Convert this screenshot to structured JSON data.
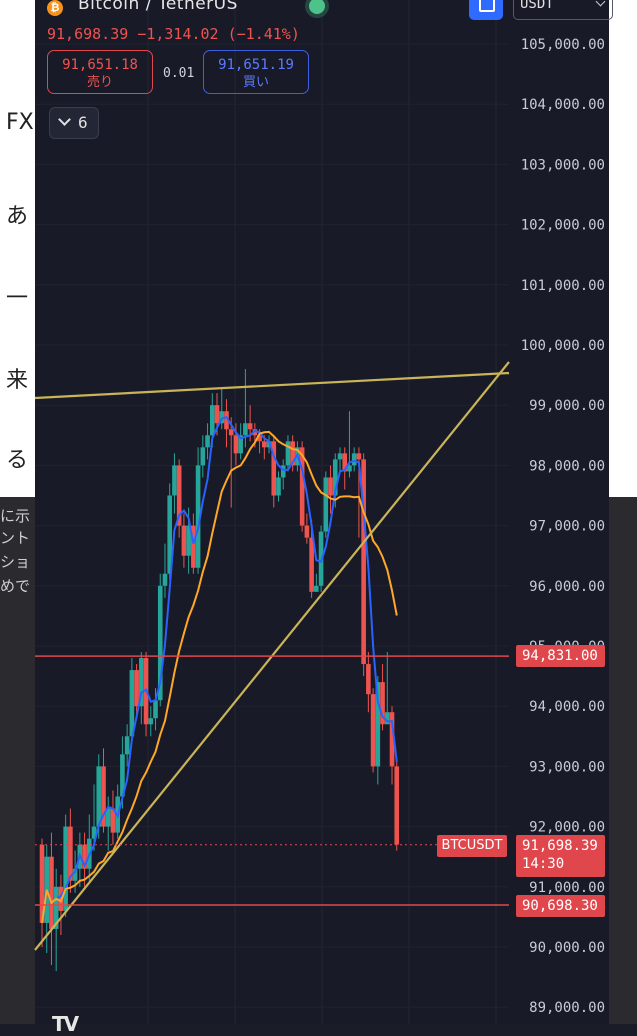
{
  "header": {
    "title": "Bitcoin / TetherUS",
    "quote": "91,698.39  −1,314.02 (−1.41%)",
    "sell_price": "91,651.18",
    "sell_label": "売り",
    "spread": "0.01",
    "buy_price": "91,651.19",
    "buy_label": "買い",
    "indicators_count": "6",
    "currency": "USDT"
  },
  "colors": {
    "up": "#26a69a",
    "down": "#ef5350",
    "ma_fast": "#2962ff",
    "ma_slow": "#ffa726",
    "trendline": "#c9b458",
    "hline": "#e0474d"
  },
  "price_tags": {
    "upper_line": "94,831.00",
    "lower_line": "90,698.30",
    "last_price": "91,698.39",
    "countdown": "14:30",
    "symbol": "BTCUSDT"
  },
  "underlay": {
    "glyphs": [
      "FXト",
      "あ",
      "一",
      "来",
      "る",
      "に示",
      "ント",
      "ショ",
      "めで"
    ]
  },
  "chart_data": {
    "type": "candlestick",
    "ylim": [
      89000,
      105500
    ],
    "y_ticks": [
      "105,000.00",
      "104,000.00",
      "103,000.00",
      "102,000.00",
      "101,000.00",
      "100,000.00",
      "99,000.00",
      "98,000.00",
      "97,000.00",
      "96,000.00",
      "95,000.00",
      "94,000.00",
      "93,000.00",
      "92,000.00",
      "91,000.00",
      "90,000.00",
      "89,000.00"
    ],
    "horizontal_lines": [
      94831,
      90698.3
    ],
    "last_price": 91698.39,
    "candles": [
      [
        91700,
        90400,
        91800,
        90000
      ],
      [
        90400,
        91500,
        91700,
        89900
      ],
      [
        91500,
        90300,
        91900,
        89700
      ],
      [
        90300,
        91000,
        91300,
        89600
      ],
      [
        91000,
        90600,
        91200,
        90200
      ],
      [
        90600,
        92000,
        92200,
        90500
      ],
      [
        92000,
        91100,
        92300,
        90900
      ],
      [
        91100,
        91300,
        91600,
        90900
      ],
      [
        91300,
        91700,
        91900,
        91000
      ],
      [
        91700,
        91300,
        91900,
        91000
      ],
      [
        91300,
        91800,
        92200,
        91100
      ],
      [
        91800,
        92000,
        92700,
        91600
      ],
      [
        92000,
        93000,
        93200,
        91800
      ],
      [
        93000,
        92000,
        93300,
        91900
      ],
      [
        92000,
        92300,
        92500,
        91600
      ],
      [
        92300,
        91900,
        92600,
        91700
      ],
      [
        91900,
        92500,
        92700,
        91800
      ],
      [
        92500,
        93200,
        93500,
        92300
      ],
      [
        93200,
        93500,
        93700,
        93000
      ],
      [
        93500,
        94600,
        94800,
        93400
      ],
      [
        94600,
        94000,
        94700,
        93800
      ],
      [
        94000,
        94800,
        94900,
        93700
      ],
      [
        94800,
        93700,
        94900,
        93500
      ],
      [
        93700,
        93800,
        94000,
        93500
      ],
      [
        93800,
        94100,
        94300,
        93600
      ],
      [
        94100,
        96000,
        96200,
        94000
      ],
      [
        96000,
        96200,
        96700,
        95800
      ],
      [
        96200,
        97500,
        97700,
        96100
      ],
      [
        97500,
        98000,
        98200,
        97200
      ],
      [
        98000,
        97000,
        98100,
        96800
      ],
      [
        97000,
        96500,
        97200,
        96300
      ],
      [
        96500,
        97000,
        97300,
        96200
      ],
      [
        97000,
        96300,
        97200,
        96200
      ],
      [
        96300,
        98000,
        98300,
        96200
      ],
      [
        98000,
        98300,
        98500,
        97800
      ],
      [
        98300,
        98500,
        98700,
        98100
      ],
      [
        98500,
        99000,
        99200,
        98300
      ],
      [
        99000,
        98700,
        99200,
        98500
      ],
      [
        98700,
        98900,
        99300,
        98600
      ],
      [
        98900,
        98600,
        99100,
        98300
      ],
      [
        98600,
        98500,
        98800,
        97300
      ],
      [
        98500,
        98200,
        98700,
        98000
      ],
      [
        98200,
        98500,
        98700,
        98100
      ],
      [
        98500,
        98700,
        99600,
        98300
      ],
      [
        98700,
        98600,
        99000,
        98400
      ],
      [
        98600,
        98500,
        98700,
        98300
      ],
      [
        98500,
        98400,
        98600,
        98200
      ],
      [
        98400,
        98300,
        98500,
        98100
      ],
      [
        98300,
        98400,
        98500,
        98200
      ],
      [
        98400,
        97500,
        98500,
        97300
      ],
      [
        97500,
        97800,
        97900,
        97400
      ],
      [
        97800,
        98000,
        98100,
        97600
      ],
      [
        98000,
        98400,
        98500,
        97900
      ],
      [
        98400,
        98000,
        98500,
        97900
      ],
      [
        98000,
        98300,
        98400,
        97900
      ],
      [
        98300,
        97000,
        98400,
        96900
      ],
      [
        97000,
        96800,
        97200,
        96700
      ],
      [
        96800,
        95900,
        97100,
        95800
      ],
      [
        95900,
        96000,
        96200,
        95900
      ],
      [
        96000,
        96900,
        97000,
        95900
      ],
      [
        96900,
        97800,
        97900,
        96800
      ],
      [
        97800,
        97500,
        98000,
        97200
      ],
      [
        97500,
        98100,
        98200,
        97300
      ],
      [
        98100,
        98200,
        98300,
        97900
      ],
      [
        98200,
        97900,
        98300,
        97600
      ],
      [
        97900,
        98000,
        98900,
        97800
      ],
      [
        98000,
        98200,
        98300,
        97900
      ],
      [
        98200,
        98100,
        98300,
        96800
      ],
      [
        98100,
        94700,
        98200,
        94500
      ],
      [
        94700,
        94200,
        94900,
        93900
      ],
      [
        94200,
        93000,
        94300,
        92900
      ],
      [
        93000,
        94400,
        94500,
        92700
      ],
      [
        94400,
        93700,
        94700,
        93600
      ],
      [
        93700,
        93900,
        94900,
        93700
      ],
      [
        93900,
        93000,
        94000,
        92700
      ],
      [
        93000,
        91700,
        93100,
        91600
      ]
    ]
  }
}
